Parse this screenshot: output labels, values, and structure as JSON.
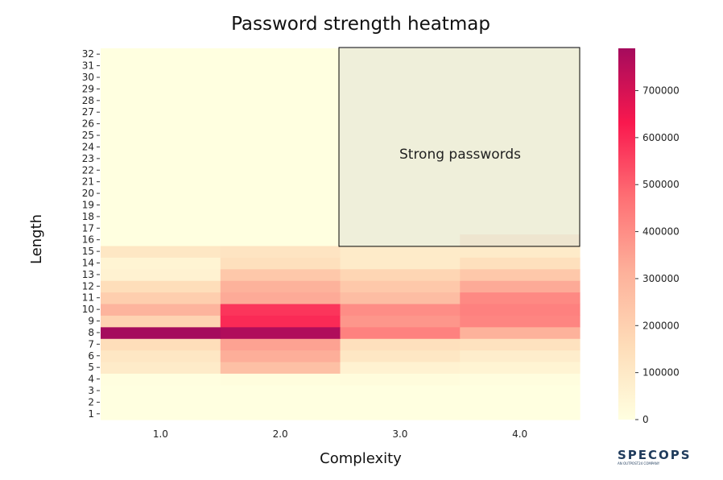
{
  "chart_data": {
    "type": "heatmap",
    "title": "Password strength heatmap",
    "xlabel": "Complexity",
    "ylabel": "Length",
    "x": [
      "1.0",
      "2.0",
      "3.0",
      "4.0"
    ],
    "y": [
      1,
      2,
      3,
      4,
      5,
      6,
      7,
      8,
      9,
      10,
      11,
      12,
      13,
      14,
      15,
      16,
      17,
      18,
      19,
      20,
      21,
      22,
      23,
      24,
      25,
      26,
      27,
      28,
      29,
      30,
      31,
      32
    ],
    "values": [
      [
        0,
        0,
        0,
        0
      ],
      [
        0,
        0,
        0,
        0
      ],
      [
        0,
        0,
        0,
        0
      ],
      [
        5000,
        10000,
        15000,
        8000
      ],
      [
        90000,
        260000,
        60000,
        50000
      ],
      [
        110000,
        320000,
        110000,
        80000
      ],
      [
        150000,
        350000,
        140000,
        130000
      ],
      [
        790000,
        770000,
        430000,
        310000
      ],
      [
        190000,
        600000,
        380000,
        420000
      ],
      [
        300000,
        580000,
        400000,
        430000
      ],
      [
        210000,
        330000,
        270000,
        410000
      ],
      [
        150000,
        310000,
        230000,
        330000
      ],
      [
        60000,
        230000,
        180000,
        230000
      ],
      [
        50000,
        140000,
        90000,
        140000
      ],
      [
        110000,
        120000,
        90000,
        90000
      ],
      [
        0,
        0,
        0,
        80000
      ],
      [
        0,
        0,
        0,
        0
      ],
      [
        0,
        0,
        0,
        0
      ],
      [
        0,
        0,
        0,
        0
      ],
      [
        0,
        0,
        0,
        0
      ],
      [
        0,
        0,
        0,
        0
      ],
      [
        0,
        0,
        0,
        0
      ],
      [
        0,
        0,
        0,
        0
      ],
      [
        0,
        0,
        0,
        0
      ],
      [
        0,
        0,
        0,
        0
      ],
      [
        0,
        0,
        0,
        0
      ],
      [
        0,
        0,
        0,
        0
      ],
      [
        0,
        0,
        0,
        0
      ],
      [
        0,
        0,
        0,
        0
      ],
      [
        0,
        0,
        0,
        0
      ],
      [
        0,
        0,
        0,
        0
      ],
      [
        0,
        0,
        0,
        0
      ]
    ],
    "colorbar": {
      "min": 0,
      "max": 790000,
      "ticks": [
        0,
        100000,
        200000,
        300000,
        400000,
        500000,
        600000,
        700000
      ],
      "colors": [
        "#ffffe0",
        "#fedcb8",
        "#fdb09a",
        "#fe6f74",
        "#f9184e",
        "#a50b5d"
      ]
    },
    "annotation": {
      "text": "Strong passwords",
      "x_range": [
        "3.0",
        "4.0"
      ],
      "y_range": [
        16,
        32
      ]
    }
  },
  "logo": {
    "text": "SPECOPS",
    "subtext": "AN OUTPOST24 COMPANY"
  }
}
